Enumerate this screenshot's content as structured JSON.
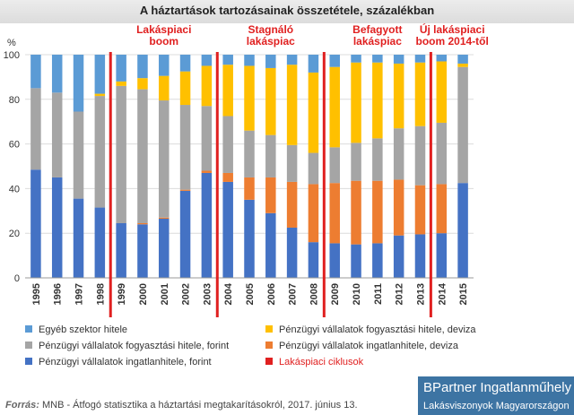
{
  "title": "A háztartások tartozásainak összetétele, százalékban",
  "chart_data": {
    "type": "bar",
    "stacked": true,
    "y_unit": "%",
    "ylim": [
      0,
      100
    ],
    "y_ticks": [
      0,
      20,
      40,
      60,
      80,
      100
    ],
    "grid": true,
    "categories": [
      "1995",
      "1996",
      "1997",
      "1998",
      "1999",
      "2000",
      "2001",
      "2002",
      "2003",
      "2004",
      "2005",
      "2006",
      "2007",
      "2008",
      "2009",
      "2010",
      "2011",
      "2012",
      "2013",
      "2014",
      "2015"
    ],
    "series": [
      {
        "name": "Pénzügyi vállalatok ingatlanhitele, forint",
        "color": "#4472c4",
        "values": [
          48.5,
          45,
          35.5,
          31.5,
          24.5,
          24,
          26.5,
          39,
          47,
          43,
          35,
          29,
          22.5,
          16,
          15.5,
          15,
          15.5,
          19,
          19.5,
          20,
          42.5
        ]
      },
      {
        "name": "Pénzügyi vállalatok ingatlanhitele, deviza",
        "color": "#ed7d31",
        "values": [
          0,
          0,
          0,
          0,
          0,
          0.5,
          0.5,
          0.5,
          1,
          4,
          10,
          16,
          20.5,
          26,
          27,
          28.5,
          28,
          25,
          22,
          22,
          0
        ]
      },
      {
        "name": "Pénzügyi vállalatok fogyasztási hitele, forint",
        "color": "#a5a5a5",
        "values": [
          36.5,
          38,
          39,
          50,
          61.5,
          60,
          52.5,
          38,
          29,
          25.5,
          21,
          19,
          16.5,
          14,
          16,
          17,
          19,
          23,
          26.5,
          27.5,
          52
        ]
      },
      {
        "name": "Pénzügyi vállalatok fogyasztási hitele, deviza",
        "color": "#ffc000",
        "values": [
          0,
          0,
          0,
          1,
          2,
          5,
          11,
          15,
          18,
          23,
          29,
          30,
          36,
          36,
          36,
          36,
          34,
          29,
          28.5,
          27.5,
          1.5
        ]
      },
      {
        "name": "Egyéb szektor hitele",
        "color": "#5b9bd5",
        "values": [
          15,
          17,
          25.5,
          17.5,
          12,
          10.5,
          9.5,
          7.5,
          5,
          4.5,
          5,
          6,
          4.5,
          8,
          5.5,
          3.5,
          3.5,
          4,
          3.5,
          3,
          4
        ]
      }
    ],
    "cycle_boundaries_after": [
      "1998",
      "2003",
      "2008",
      "2013"
    ],
    "annotations": [
      {
        "lines": [
          "Lakáspiaci",
          "boom"
        ],
        "years": [
          "1999",
          "2003"
        ]
      },
      {
        "lines": [
          "Stagnáló",
          "lakáspiac"
        ],
        "years": [
          "2004",
          "2008"
        ]
      },
      {
        "lines": [
          "Befagyott",
          "lakáspiac"
        ],
        "years": [
          "2009",
          "2013"
        ]
      },
      {
        "lines": [
          "Új lakáspiaci",
          "boom 2014-től"
        ],
        "years": [
          "2014",
          "2015"
        ]
      }
    ]
  },
  "legend": {
    "items": [
      {
        "label": "Egyéb szektor hitele",
        "color": "#5b9bd5"
      },
      {
        "label": "Pénzügyi vállalatok fogyasztási hitele, deviza",
        "color": "#ffc000"
      },
      {
        "label": "Pénzügyi vállalatok fogyasztási hitele, forint",
        "color": "#a5a5a5"
      },
      {
        "label": "Pénzügyi vállalatok ingatlanhitele, deviza",
        "color": "#ed7d31"
      },
      {
        "label": "Pénzügyi vállalatok ingatlanhitele, forint",
        "color": "#4472c4"
      },
      {
        "label": "Lakáspiaci ciklusok",
        "color": "#e02020"
      }
    ]
  },
  "source": {
    "label": "Forrás:",
    "text": " MNB - Átfogó statisztika a háztartási megtakarításokról, 2017. június 13."
  },
  "brand": {
    "name": "BPartner Ingatlanműhely",
    "tagline": "Lakásviszonyok Magyarországon",
    "color": "#3d74a3"
  }
}
